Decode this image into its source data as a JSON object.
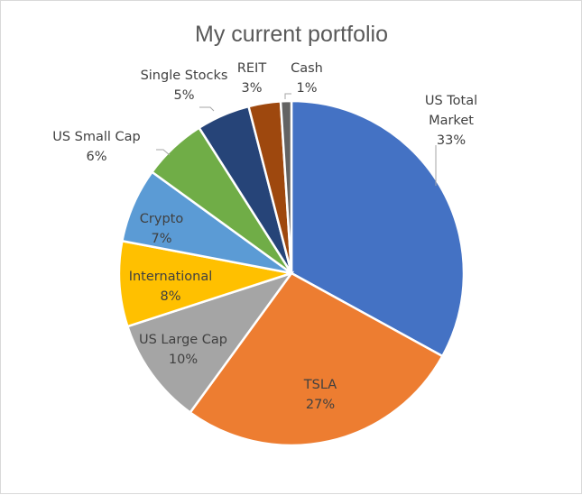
{
  "chart_data": {
    "type": "pie",
    "title": "My current portfolio",
    "legend": "none",
    "slices": [
      {
        "label": "US Total Market",
        "label_lines": [
          "US Total",
          "Market"
        ],
        "value": 33,
        "value_label": "33%",
        "color": "#4472C4"
      },
      {
        "label": "TSLA",
        "label_lines": [
          "TSLA"
        ],
        "value": 27,
        "value_label": "27%",
        "color": "#ED7D31"
      },
      {
        "label": "US Large Cap",
        "label_lines": [
          "US Large Cap"
        ],
        "value": 10,
        "value_label": "10%",
        "color": "#A5A5A5"
      },
      {
        "label": "International",
        "label_lines": [
          "International"
        ],
        "value": 8,
        "value_label": "8%",
        "color": "#FFC000"
      },
      {
        "label": "Crypto",
        "label_lines": [
          "Crypto"
        ],
        "value": 7,
        "value_label": "7%",
        "color": "#5B9BD5"
      },
      {
        "label": "US Small Cap",
        "label_lines": [
          "US Small Cap"
        ],
        "value": 6,
        "value_label": "6%",
        "color": "#70AD47"
      },
      {
        "label": "Single Stocks",
        "label_lines": [
          "Single Stocks"
        ],
        "value": 5,
        "value_label": "5%",
        "color": "#264478"
      },
      {
        "label": "REIT",
        "label_lines": [
          "REIT"
        ],
        "value": 3,
        "value_label": "3%",
        "color": "#9E480E"
      },
      {
        "label": "Cash",
        "label_lines": [
          "Cash"
        ],
        "value": 1,
        "value_label": "1%",
        "color": "#636363"
      }
    ]
  }
}
